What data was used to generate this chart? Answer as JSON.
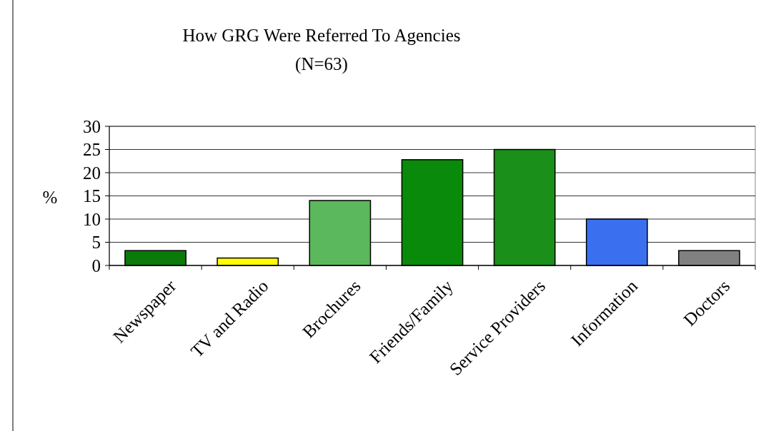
{
  "chart_data": {
    "type": "bar",
    "title": "How GRG Were Referred To Agencies",
    "subtitle": "(N=63)",
    "ylabel": "%",
    "categories": [
      "Newspaper",
      "TV and Radio",
      "Brochures",
      "Friends/Family",
      "Service Providers",
      "Information",
      "Doctors"
    ],
    "values": [
      3.2,
      1.6,
      14,
      22.8,
      25,
      10,
      3.2
    ],
    "colors": [
      "#0a7a0a",
      "#ffff00",
      "#5cb85c",
      "#0a8a0a",
      "#1a8f1a",
      "#3a6ff0",
      "#808080"
    ],
    "ylim": [
      0,
      30
    ],
    "yticks": [
      0,
      5,
      10,
      15,
      20,
      25,
      30
    ],
    "grid": "y"
  }
}
